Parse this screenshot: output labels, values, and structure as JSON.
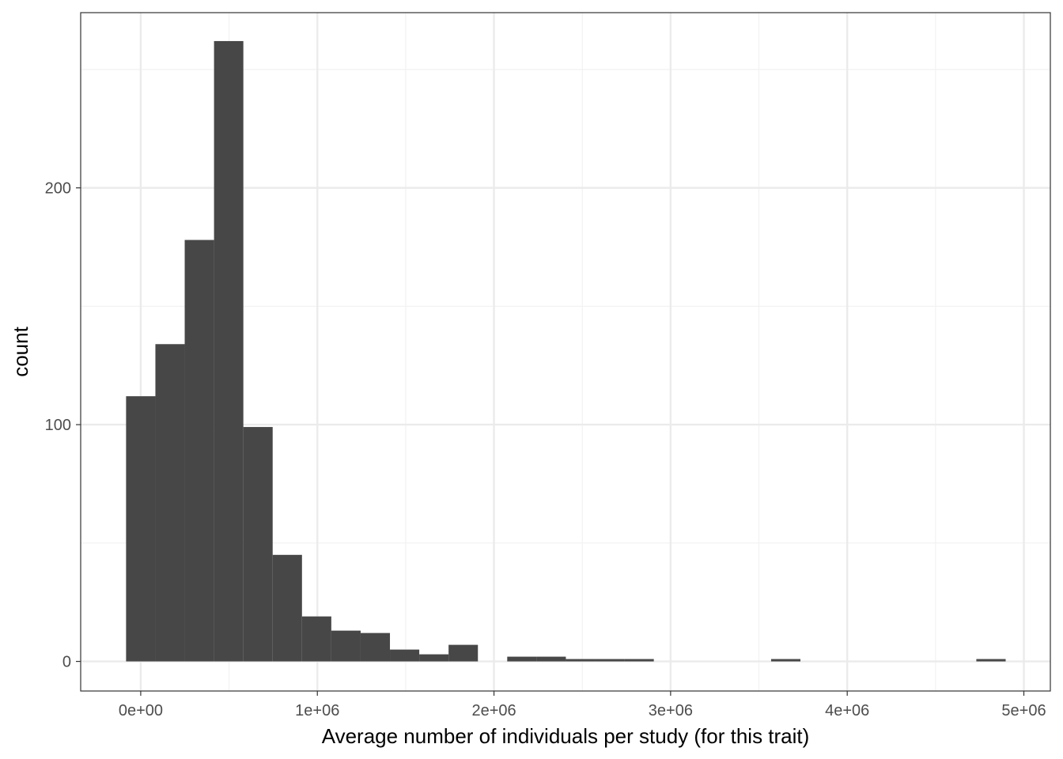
{
  "chart_data": {
    "type": "bar",
    "subtype": "histogram",
    "title": "",
    "xlabel": "Average number of individuals per study (for this trait)",
    "ylabel": "count",
    "xlim": [
      -340000,
      5150000
    ],
    "ylim": [
      -12.5,
      274
    ],
    "x_ticks": [
      {
        "value": 0,
        "label": "0e+00"
      },
      {
        "value": 1000000,
        "label": "1e+06"
      },
      {
        "value": 2000000,
        "label": "2e+06"
      },
      {
        "value": 3000000,
        "label": "3e+06"
      },
      {
        "value": 4000000,
        "label": "4e+06"
      },
      {
        "value": 5000000,
        "label": "5e+06"
      }
    ],
    "x_minor_gridlines": [
      500000,
      1500000,
      2500000,
      3500000,
      4500000
    ],
    "y_ticks": [
      {
        "value": 0,
        "label": "0"
      },
      {
        "value": 100,
        "label": "100"
      },
      {
        "value": 200,
        "label": "200"
      }
    ],
    "y_minor_gridlines": [
      50,
      150,
      250
    ],
    "bin_width": 166000,
    "bins": [
      {
        "x_start": -83000,
        "count": 112
      },
      {
        "x_start": 83000,
        "count": 134
      },
      {
        "x_start": 249000,
        "count": 178
      },
      {
        "x_start": 415000,
        "count": 262
      },
      {
        "x_start": 581000,
        "count": 99
      },
      {
        "x_start": 747000,
        "count": 45
      },
      {
        "x_start": 913000,
        "count": 19
      },
      {
        "x_start": 1079000,
        "count": 13
      },
      {
        "x_start": 1245000,
        "count": 12
      },
      {
        "x_start": 1411000,
        "count": 5
      },
      {
        "x_start": 1577000,
        "count": 3
      },
      {
        "x_start": 1743000,
        "count": 7
      },
      {
        "x_start": 2075000,
        "count": 2
      },
      {
        "x_start": 2241000,
        "count": 2
      },
      {
        "x_start": 2407000,
        "count": 1
      },
      {
        "x_start": 2573000,
        "count": 1
      },
      {
        "x_start": 2739000,
        "count": 1
      },
      {
        "x_start": 3569000,
        "count": 1
      },
      {
        "x_start": 4731000,
        "count": 1
      }
    ],
    "grid": true,
    "theme": "bw",
    "colors": {
      "bar_fill": "#474747",
      "grid_major": "#ebebeb",
      "grid_minor": "#f2f2f2",
      "panel_border": "#333333",
      "tick_label": "#4d4d4d"
    }
  }
}
